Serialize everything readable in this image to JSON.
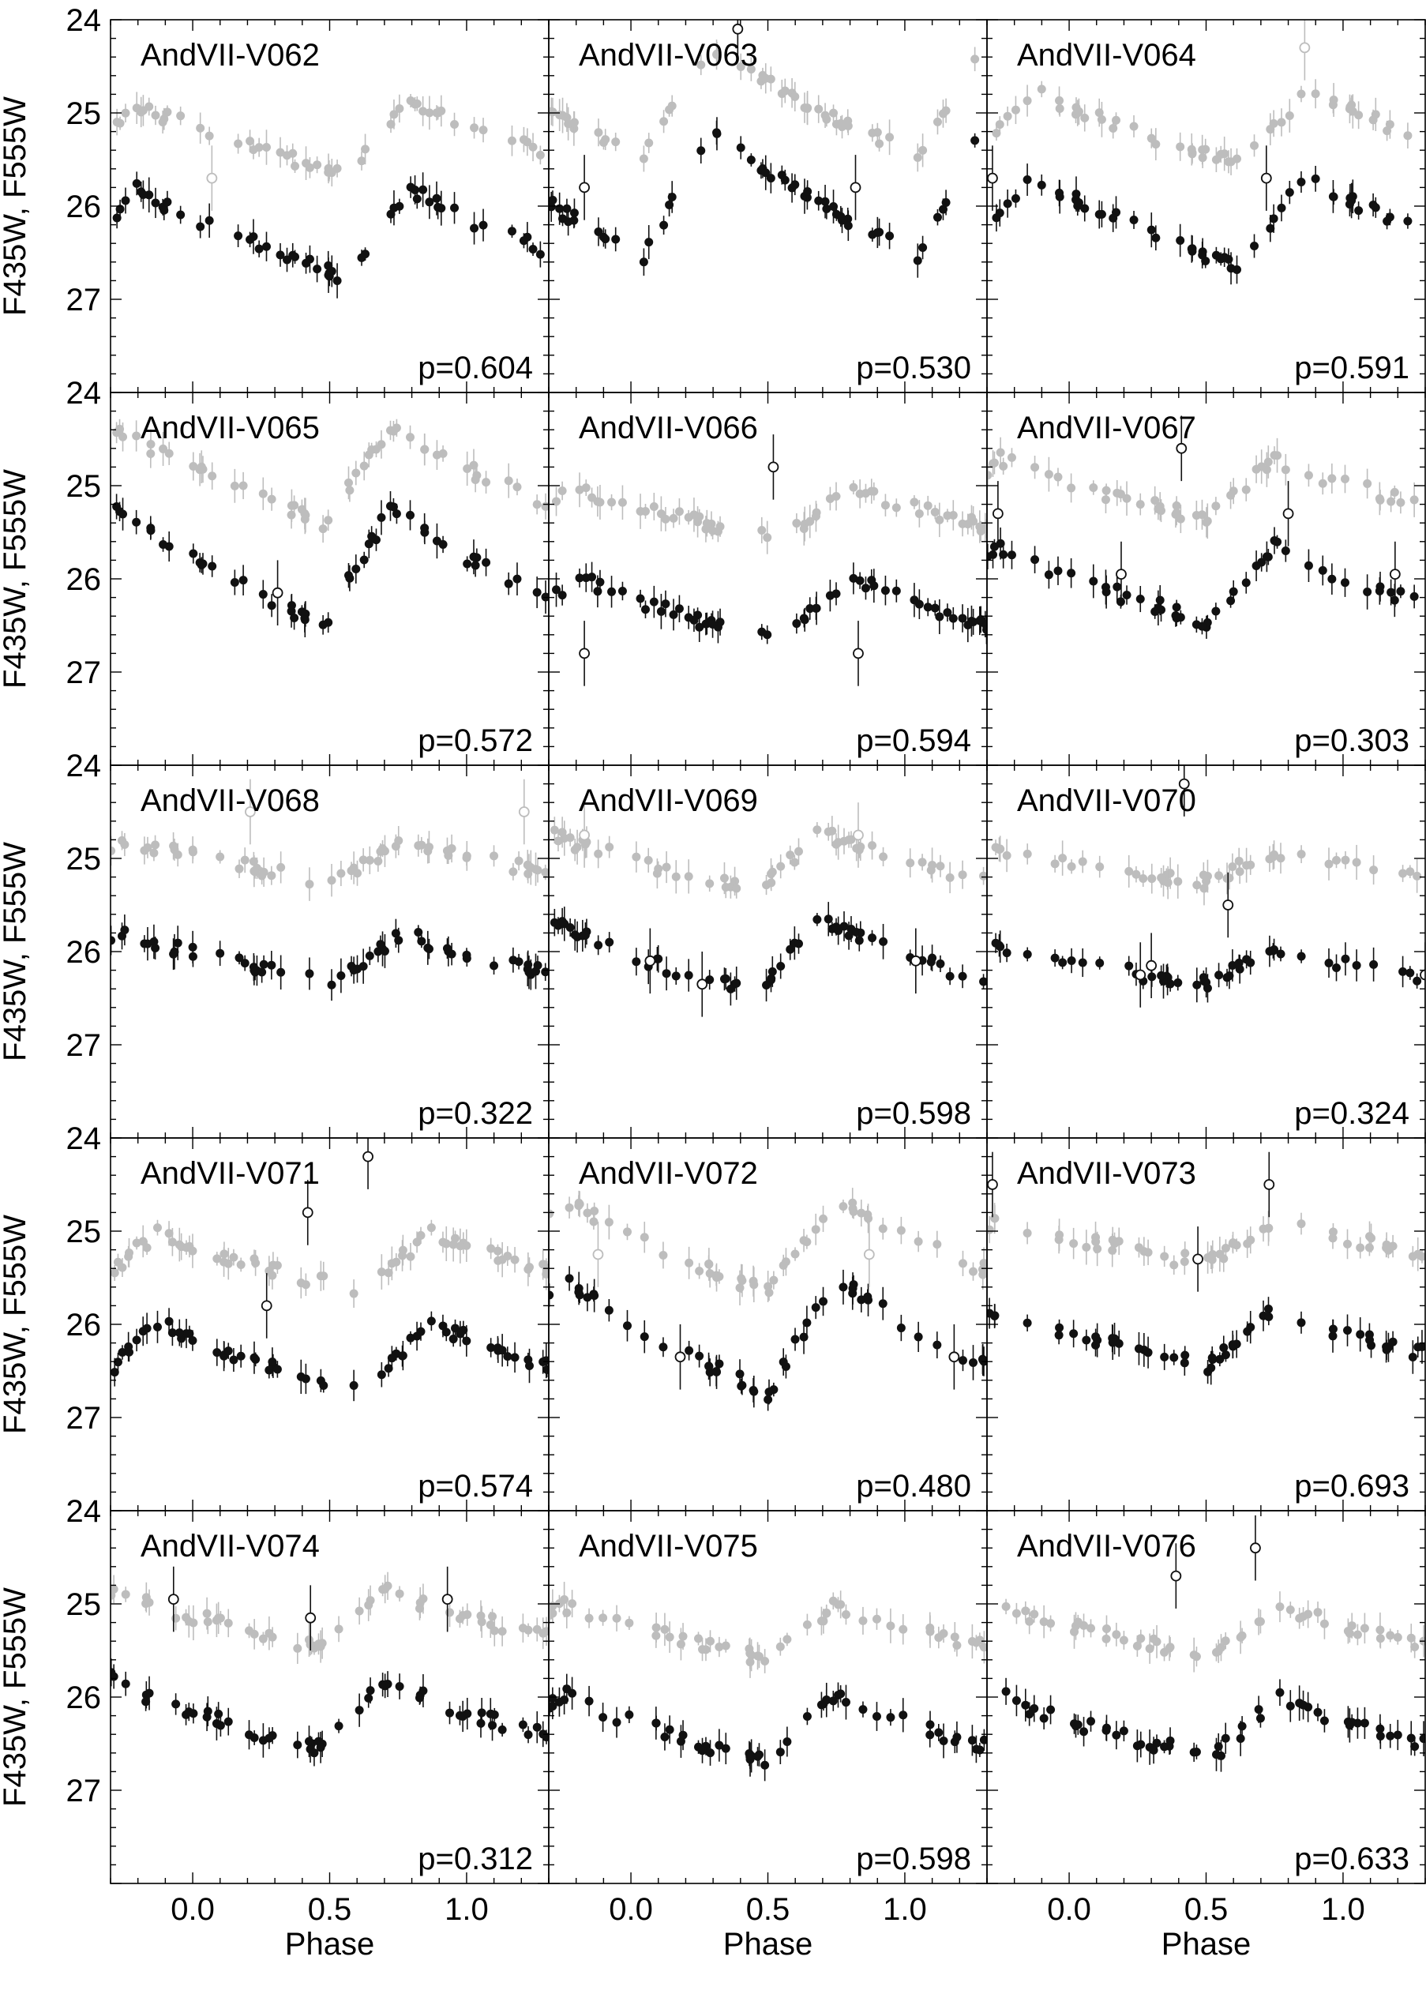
{
  "chart_data": {
    "type": "scatter",
    "layout": "5 rows x 3 columns",
    "xlabel": "Phase",
    "ylabel": "F435W, F555W",
    "xlim": [
      -0.3,
      1.3
    ],
    "ylim": [
      28.0,
      24.0
    ],
    "y_inverted": true,
    "x_ticks": [
      "0.0",
      "0.5",
      "1.0"
    ],
    "x_tick_values": [
      0.0,
      0.5,
      1.0
    ],
    "y_ticks": [
      "24",
      "25",
      "26",
      "27"
    ],
    "y_tick_values": [
      24,
      25,
      26,
      27
    ],
    "colors": {
      "F435W": "#111111",
      "F555W": "#bdbdbd"
    },
    "marker_note": "filled = good points, open circles = outlier points",
    "panels": [
      {
        "name": "AndVII-V062",
        "period_label": "p=0.604",
        "base": 26.4,
        "amp": 0.95,
        "offset": 0.55,
        "outliers": [
          [
            0.07,
            25.7,
            "gray"
          ]
        ]
      },
      {
        "name": "AndVII-V063",
        "period_label": "p=0.530",
        "base": 26.2,
        "amp": 1.45,
        "offset": 0.05,
        "outliers": [
          [
            -0.17,
            25.8,
            "black"
          ],
          [
            0.82,
            25.8,
            "black"
          ],
          [
            0.39,
            24.1,
            "black"
          ]
        ]
      },
      {
        "name": "AndVII-V064",
        "period_label": "p=0.591",
        "base": 26.3,
        "amp": 1.0,
        "offset": 0.62,
        "outliers": [
          [
            -0.28,
            25.7,
            "black"
          ],
          [
            0.72,
            25.7,
            "black"
          ],
          [
            0.86,
            24.3,
            "gray"
          ]
        ]
      },
      {
        "name": "AndVII-V065",
        "period_label": "p=0.572",
        "base": 26.15,
        "amp": 1.3,
        "offset": 0.48,
        "outliers": [
          [
            0.31,
            26.15,
            "black"
          ]
        ]
      },
      {
        "name": "AndVII-V066",
        "period_label": "p=0.594",
        "base": 26.35,
        "amp": 0.75,
        "offset": 0.55,
        "outliers": [
          [
            0.52,
            24.8,
            "black"
          ],
          [
            -0.17,
            26.8,
            "black"
          ],
          [
            0.83,
            26.8,
            "black"
          ]
        ]
      },
      {
        "name": "AndVII-V067",
        "period_label": "p=0.303",
        "base": 26.1,
        "amp": 0.8,
        "offset": 0.5,
        "outliers": [
          [
            -0.26,
            25.3,
            "black"
          ],
          [
            0.19,
            25.95,
            "black"
          ],
          [
            0.41,
            24.6,
            "black"
          ],
          [
            0.8,
            25.3,
            "black"
          ],
          [
            1.19,
            25.95,
            "black"
          ]
        ]
      },
      {
        "name": "AndVII-V068",
        "period_label": "p=0.322",
        "base": 26.0,
        "amp": 0.55,
        "offset": 0.52,
        "outliers": [
          [
            0.21,
            24.5,
            "gray"
          ],
          [
            1.21,
            24.5,
            "gray"
          ]
        ]
      },
      {
        "name": "AndVII-V069",
        "period_label": "p=0.598",
        "base": 26.1,
        "amp": 0.8,
        "offset": 0.45,
        "outliers": [
          [
            0.07,
            26.1,
            "black"
          ],
          [
            -0.17,
            24.75,
            "gray"
          ],
          [
            0.83,
            24.75,
            "gray"
          ],
          [
            0.26,
            26.35,
            "black"
          ],
          [
            1.04,
            26.1,
            "black"
          ]
        ]
      },
      {
        "name": "AndVII-V070",
        "period_label": "p=0.324",
        "base": 26.0,
        "amp": 0.4,
        "offset": 0.5,
        "outliers": [
          [
            0.42,
            24.2,
            "black"
          ],
          [
            0.58,
            25.5,
            "black"
          ],
          [
            0.3,
            26.15,
            "black"
          ],
          [
            0.26,
            26.25,
            "black"
          ],
          [
            1.3,
            26.25,
            "black"
          ]
        ]
      },
      {
        "name": "AndVII-V071",
        "period_label": "p=0.574",
        "base": 26.4,
        "amp": 0.8,
        "offset": 0.62,
        "outliers": [
          [
            0.27,
            25.8,
            "black"
          ],
          [
            0.42,
            24.8,
            "black"
          ],
          [
            0.64,
            24.2,
            "black"
          ]
        ]
      },
      {
        "name": "AndVII-V072",
        "period_label": "p=0.480",
        "base": 26.4,
        "amp": 1.3,
        "offset": 0.5,
        "outliers": [
          [
            -0.12,
            25.25,
            "gray"
          ],
          [
            0.18,
            26.35,
            "black"
          ],
          [
            0.87,
            25.25,
            "gray"
          ],
          [
            1.18,
            26.35,
            "black"
          ]
        ]
      },
      {
        "name": "AndVII-V073",
        "period_label": "p=0.693",
        "base": 26.1,
        "amp": 0.6,
        "offset": 0.5,
        "outliers": [
          [
            -0.28,
            24.5,
            "black"
          ],
          [
            0.73,
            24.5,
            "black"
          ],
          [
            0.47,
            25.3,
            "black"
          ]
        ]
      },
      {
        "name": "AndVII-V074",
        "period_label": "p=0.312",
        "base": 26.2,
        "amp": 0.75,
        "offset": 0.45,
        "outliers": [
          [
            -0.07,
            24.95,
            "black"
          ],
          [
            0.43,
            25.15,
            "black"
          ],
          [
            0.93,
            24.95,
            "black"
          ]
        ]
      },
      {
        "name": "AndVII-V075",
        "period_label": "p=0.598",
        "base": 26.35,
        "amp": 0.75,
        "offset": 0.5,
        "outliers": []
      },
      {
        "name": "AndVII-V076",
        "period_label": "p=0.633",
        "base": 26.3,
        "amp": 0.65,
        "offset": 0.52,
        "outliers": [
          [
            0.39,
            24.7,
            "black"
          ],
          [
            0.68,
            24.4,
            "black"
          ]
        ]
      }
    ]
  }
}
